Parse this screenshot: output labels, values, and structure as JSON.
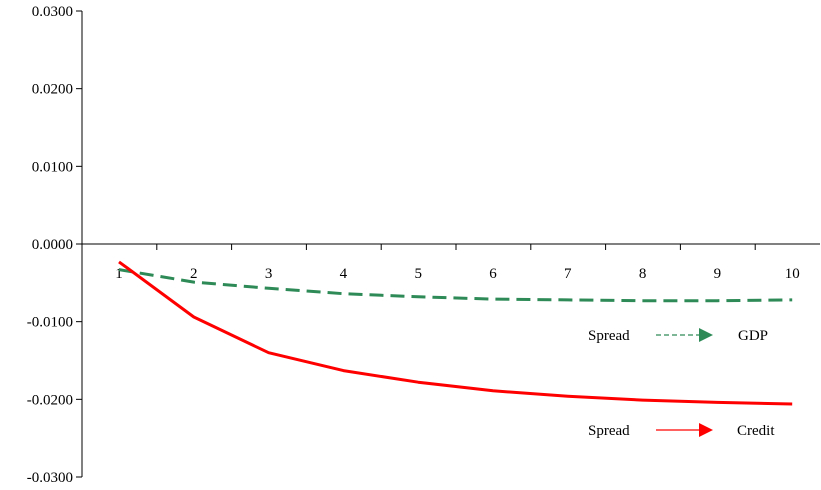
{
  "chart_data": {
    "type": "line",
    "x": [
      1,
      2,
      3,
      4,
      5,
      6,
      7,
      8,
      9,
      10
    ],
    "ylim": [
      -0.03,
      0.03
    ],
    "yticks": [
      "0.0300",
      "0.0200",
      "0.0100",
      "0.0000",
      "-0.0100",
      "-0.0200",
      "-0.0300"
    ],
    "xticks": [
      "1",
      "2",
      "3",
      "4",
      "5",
      "6",
      "7",
      "8",
      "9",
      "10"
    ],
    "grid": false,
    "series": [
      {
        "name": "Spread → GDP",
        "from_label": "Spread",
        "to_label": "GDP",
        "color": "#2e8b57",
        "style": "dashed",
        "values": [
          -0.0033,
          -0.0049,
          -0.0057,
          -0.0064,
          -0.0068,
          -0.0071,
          -0.0072,
          -0.0073,
          -0.0073,
          -0.0072
        ]
      },
      {
        "name": "Spread → Credit",
        "from_label": "Spread",
        "to_label": "Credit",
        "color": "#ff0000",
        "style": "solid",
        "values": [
          -0.0023,
          -0.0094,
          -0.014,
          -0.0163,
          -0.0178,
          -0.0189,
          -0.0196,
          -0.0201,
          -0.0204,
          -0.0206
        ]
      }
    ]
  }
}
